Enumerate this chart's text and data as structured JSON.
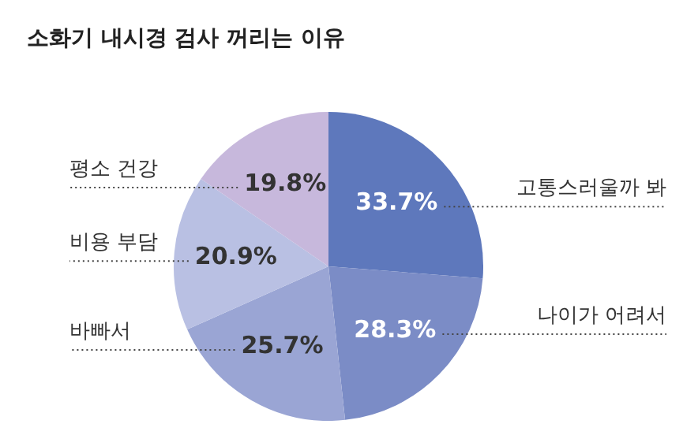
{
  "chart_data": {
    "type": "pie",
    "title": "소화기 내시경 검사 꺼리는 이유",
    "categories": [
      "고통스러울까 봐",
      "나이가 어려서",
      "바빠서",
      "비용 부담",
      "평소 건강"
    ],
    "values": [
      33.7,
      28.3,
      25.7,
      20.9,
      19.8
    ],
    "colors": [
      "#5e78bc",
      "#7b8cc6",
      "#9aa5d4",
      "#b9c0e3",
      "#c7b8dc"
    ],
    "value_labels": [
      "33.7%",
      "28.3%",
      "25.7%",
      "20.9%",
      "19.8%"
    ],
    "legend": false
  }
}
